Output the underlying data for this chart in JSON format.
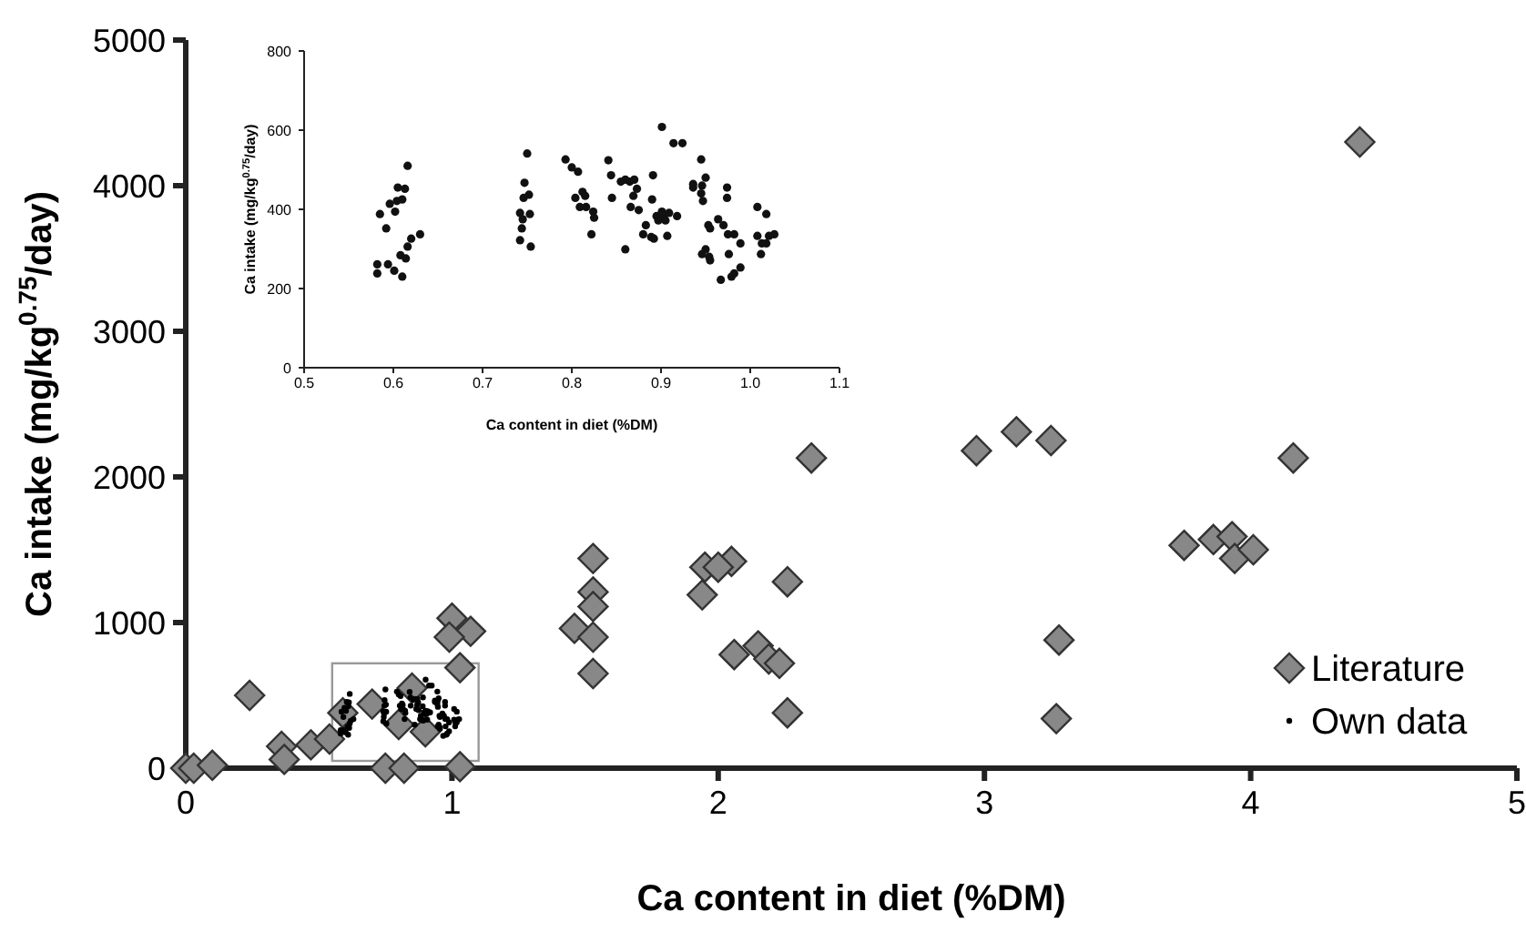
{
  "chart_data": [
    {
      "type": "scatter",
      "xlabel": "Ca content  in diet (%DM)",
      "ylabel": "Ca intake (mg/kg$^{0.75}$/day)",
      "xlim": [
        0,
        5
      ],
      "xticks": [
        0,
        1,
        2,
        3,
        4,
        5
      ],
      "ylim": [
        0,
        5000
      ],
      "yticks": [
        0,
        1000,
        2000,
        3000,
        4000,
        5000
      ],
      "grid": false,
      "legend": "bottom right",
      "series": [
        {
          "name": "Literature",
          "color": "#888888",
          "marker": "diamond",
          "x": [
            0,
            0.03,
            0.1,
            0.24,
            0.36,
            0.37,
            0.47,
            0.54,
            0.59,
            0.7,
            0.75,
            0.82,
            0.85,
            0.8,
            0.9,
            1.03,
            1.0,
            1.07,
            0.99,
            1.03,
            1.46,
            1.53,
            1.53,
            1.53,
            1.53,
            1.53,
            1.95,
            2.05,
            1.94,
            2.0,
            2.06,
            2.15,
            2.19,
            2.23,
            2.26,
            2.26,
            2.35,
            2.97,
            3.12,
            3.25,
            3.28,
            3.27,
            3.75,
            3.86,
            3.93,
            3.94,
            4.01,
            4.16,
            4.41
          ],
          "values": [
            0,
            0,
            20,
            500,
            150,
            60,
            160,
            200,
            380,
            440,
            0,
            0,
            550,
            300,
            250,
            10,
            1030,
            940,
            900,
            690,
            960,
            1440,
            1210,
            1110,
            900,
            650,
            1380,
            1420,
            1190,
            1380,
            780,
            840,
            750,
            720,
            380,
            1280,
            2130,
            2180,
            2310,
            2250,
            880,
            340,
            1530,
            1570,
            1590,
            1440,
            1500,
            2130,
            4300
          ]
        },
        {
          "name": "Own data",
          "color": "#000000",
          "marker": "circle",
          "x": [
            0.582,
            0.582,
            0.585,
            0.592,
            0.594,
            0.596,
            0.601,
            0.602,
            0.605,
            0.608,
            0.61,
            0.61,
            0.613,
            0.614,
            0.616,
            0.616,
            0.62,
            0.63,
            0.742,
            0.742,
            0.744,
            0.745,
            0.747,
            0.746,
            0.75,
            0.752,
            0.753,
            0.754,
            0.793,
            0.8,
            0.807,
            0.804,
            0.809,
            0.812,
            0.815,
            0.816,
            0.822,
            0.824,
            0.825,
            0.841,
            0.844,
            0.845,
            0.855,
            0.86,
            0.86,
            0.869,
            0.87,
            0.873,
            0.866,
            0.875,
            0.88,
            0.883,
            0.889,
            0.892,
            0.89,
            0.891,
            0.895,
            0.897,
            0.901,
            0.901,
            0.905,
            0.907,
            0.909,
            0.914,
            0.918,
            0.924,
            0.936,
            0.936,
            0.945,
            0.947,
            0.95,
            0.95,
            0.953,
            0.955,
            0.945,
            0.946,
            0.946,
            0.954,
            0.955,
            0.967,
            0.964,
            0.97,
            0.974,
            0.974,
            0.975,
            0.976,
            0.979,
            0.982,
            0.982,
            0.989,
            0.989,
            1.008,
            1.008,
            1.012,
            1.013,
            1.018,
            1.018,
            1.021,
            1.027
          ],
          "values": [
            238,
            261,
            388,
            352,
            261,
            414,
            245,
            394,
            455,
            284,
            230,
            425,
            452,
            276,
            306,
            510,
            326,
            337,
            322,
            391,
            352,
            375,
            467,
            429,
            541,
            437,
            388,
            306,
            526,
            506,
            495,
            429,
            406,
            444,
            434,
            406,
            337,
            394,
            379,
            524,
            486,
            429,
            470,
            299,
            475,
            434,
            475,
            452,
            406,
            398,
            337,
            360,
            330,
            326,
            425,
            486,
            383,
            372,
            394,
            608,
            372,
            333,
            391,
            567,
            383,
            567,
            464,
            455,
            440,
            421,
            480,
            299,
            360,
            352,
            526,
            287,
            460,
            280,
            271,
            222,
            375,
            360,
            455,
            429,
            337,
            287,
            230,
            238,
            337,
            253,
            314,
            406,
            333,
            287,
            314,
            314,
            388,
            333,
            337
          ]
        }
      ]
    },
    {
      "type": "scatter",
      "xlabel": "Ca content  in diet (%DM)",
      "ylabel": "Ca intake (mg/kg$^{0.75}$/day)",
      "xlim": [
        0.5,
        1.1
      ],
      "xticks": [
        0.5,
        0.6,
        0.7,
        0.8,
        0.9,
        {
          "value": 1,
          "label": "1.0"
        },
        1.1
      ],
      "ylim": [
        0,
        800
      ],
      "yticks": [
        0,
        200,
        400,
        600,
        800
      ],
      "grid": false,
      "series": [
        {
          "color": "#111111",
          "marker": "circle",
          "x": [
            0.582,
            0.582,
            0.585,
            0.592,
            0.594,
            0.596,
            0.601,
            0.602,
            0.604,
            0.605,
            0.608,
            0.61,
            0.61,
            0.613,
            0.614,
            0.616,
            0.616,
            0.62,
            0.63,
            0.742,
            0.742,
            0.744,
            0.745,
            0.747,
            0.746,
            0.75,
            0.752,
            0.753,
            0.754,
            0.793,
            0.8,
            0.807,
            0.804,
            0.809,
            0.812,
            0.815,
            0.816,
            0.822,
            0.824,
            0.825,
            0.841,
            0.844,
            0.845,
            0.855,
            0.86,
            0.86,
            0.865,
            0.869,
            0.87,
            0.873,
            0.866,
            0.875,
            0.88,
            0.883,
            0.889,
            0.892,
            0.89,
            0.891,
            0.895,
            0.897,
            0.901,
            0.903,
            0.901,
            0.905,
            0.907,
            0.909,
            0.914,
            0.918,
            0.924,
            0.936,
            0.936,
            0.945,
            0.947,
            0.95,
            0.95,
            0.953,
            0.955,
            0.945,
            0.946,
            0.946,
            0.954,
            0.955,
            0.967,
            0.964,
            0.97,
            0.974,
            0.974,
            0.975,
            0.976,
            0.979,
            0.982,
            0.982,
            0.989,
            0.989,
            1.008,
            1.008,
            1.012,
            1.013,
            1.018,
            1.018,
            1.021,
            1.027
          ],
          "values": [
            238,
            261,
            388,
            352,
            261,
            414,
            245,
            394,
            421,
            455,
            284,
            230,
            425,
            452,
            276,
            306,
            510,
            326,
            337,
            322,
            391,
            352,
            375,
            467,
            429,
            541,
            437,
            388,
            306,
            526,
            506,
            495,
            429,
            406,
            444,
            434,
            406,
            337,
            394,
            379,
            524,
            486,
            429,
            470,
            299,
            475,
            470,
            434,
            475,
            452,
            406,
            398,
            337,
            360,
            330,
            326,
            425,
            486,
            383,
            372,
            394,
            383,
            608,
            372,
            333,
            391,
            567,
            383,
            567,
            464,
            455,
            440,
            421,
            480,
            299,
            360,
            352,
            526,
            287,
            460,
            280,
            271,
            222,
            375,
            360,
            455,
            429,
            337,
            287,
            230,
            238,
            337,
            253,
            314,
            406,
            333,
            287,
            314,
            314,
            388,
            333,
            337
          ]
        }
      ]
    }
  ]
}
